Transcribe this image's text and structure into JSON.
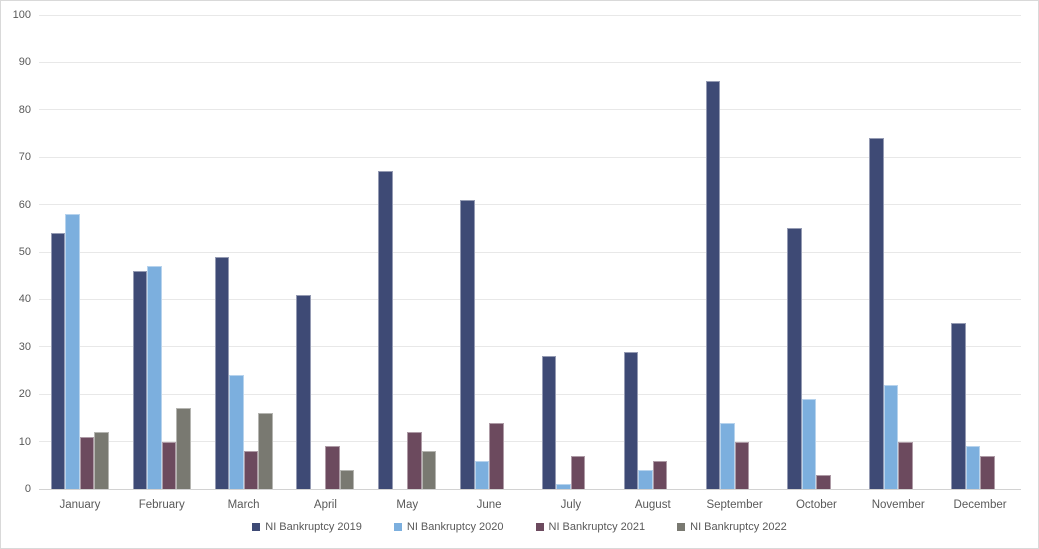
{
  "chart_data": {
    "type": "bar",
    "title": "",
    "xlabel": "",
    "ylabel": "",
    "ylim": [
      0,
      100
    ],
    "ytick_step": 10,
    "y_ticks": [
      0,
      10,
      20,
      30,
      40,
      50,
      60,
      70,
      80,
      90,
      100
    ],
    "grid": true,
    "legend_position": "bottom",
    "categories": [
      "January",
      "February",
      "March",
      "April",
      "May",
      "June",
      "July",
      "August",
      "September",
      "October",
      "November",
      "December"
    ],
    "series": [
      {
        "name": "NI Bankruptcy 2019",
        "color": "#3e4a75",
        "values": [
          54,
          46,
          49,
          41,
          67,
          61,
          28,
          29,
          86,
          55,
          74,
          35
        ]
      },
      {
        "name": "NI Bankruptcy 2020",
        "color": "#7cafde",
        "values": [
          58,
          47,
          24,
          0,
          0,
          6,
          1,
          4,
          14,
          19,
          22,
          9
        ]
      },
      {
        "name": "NI Bankruptcy 2021",
        "color": "#6c4a5e",
        "values": [
          11,
          10,
          8,
          9,
          12,
          14,
          7,
          6,
          10,
          3,
          10,
          7
        ]
      },
      {
        "name": "NI Bankruptcy 2022",
        "color": "#797971",
        "values": [
          12,
          17,
          16,
          4,
          8,
          0,
          0,
          0,
          0,
          0,
          0,
          0
        ]
      }
    ]
  }
}
